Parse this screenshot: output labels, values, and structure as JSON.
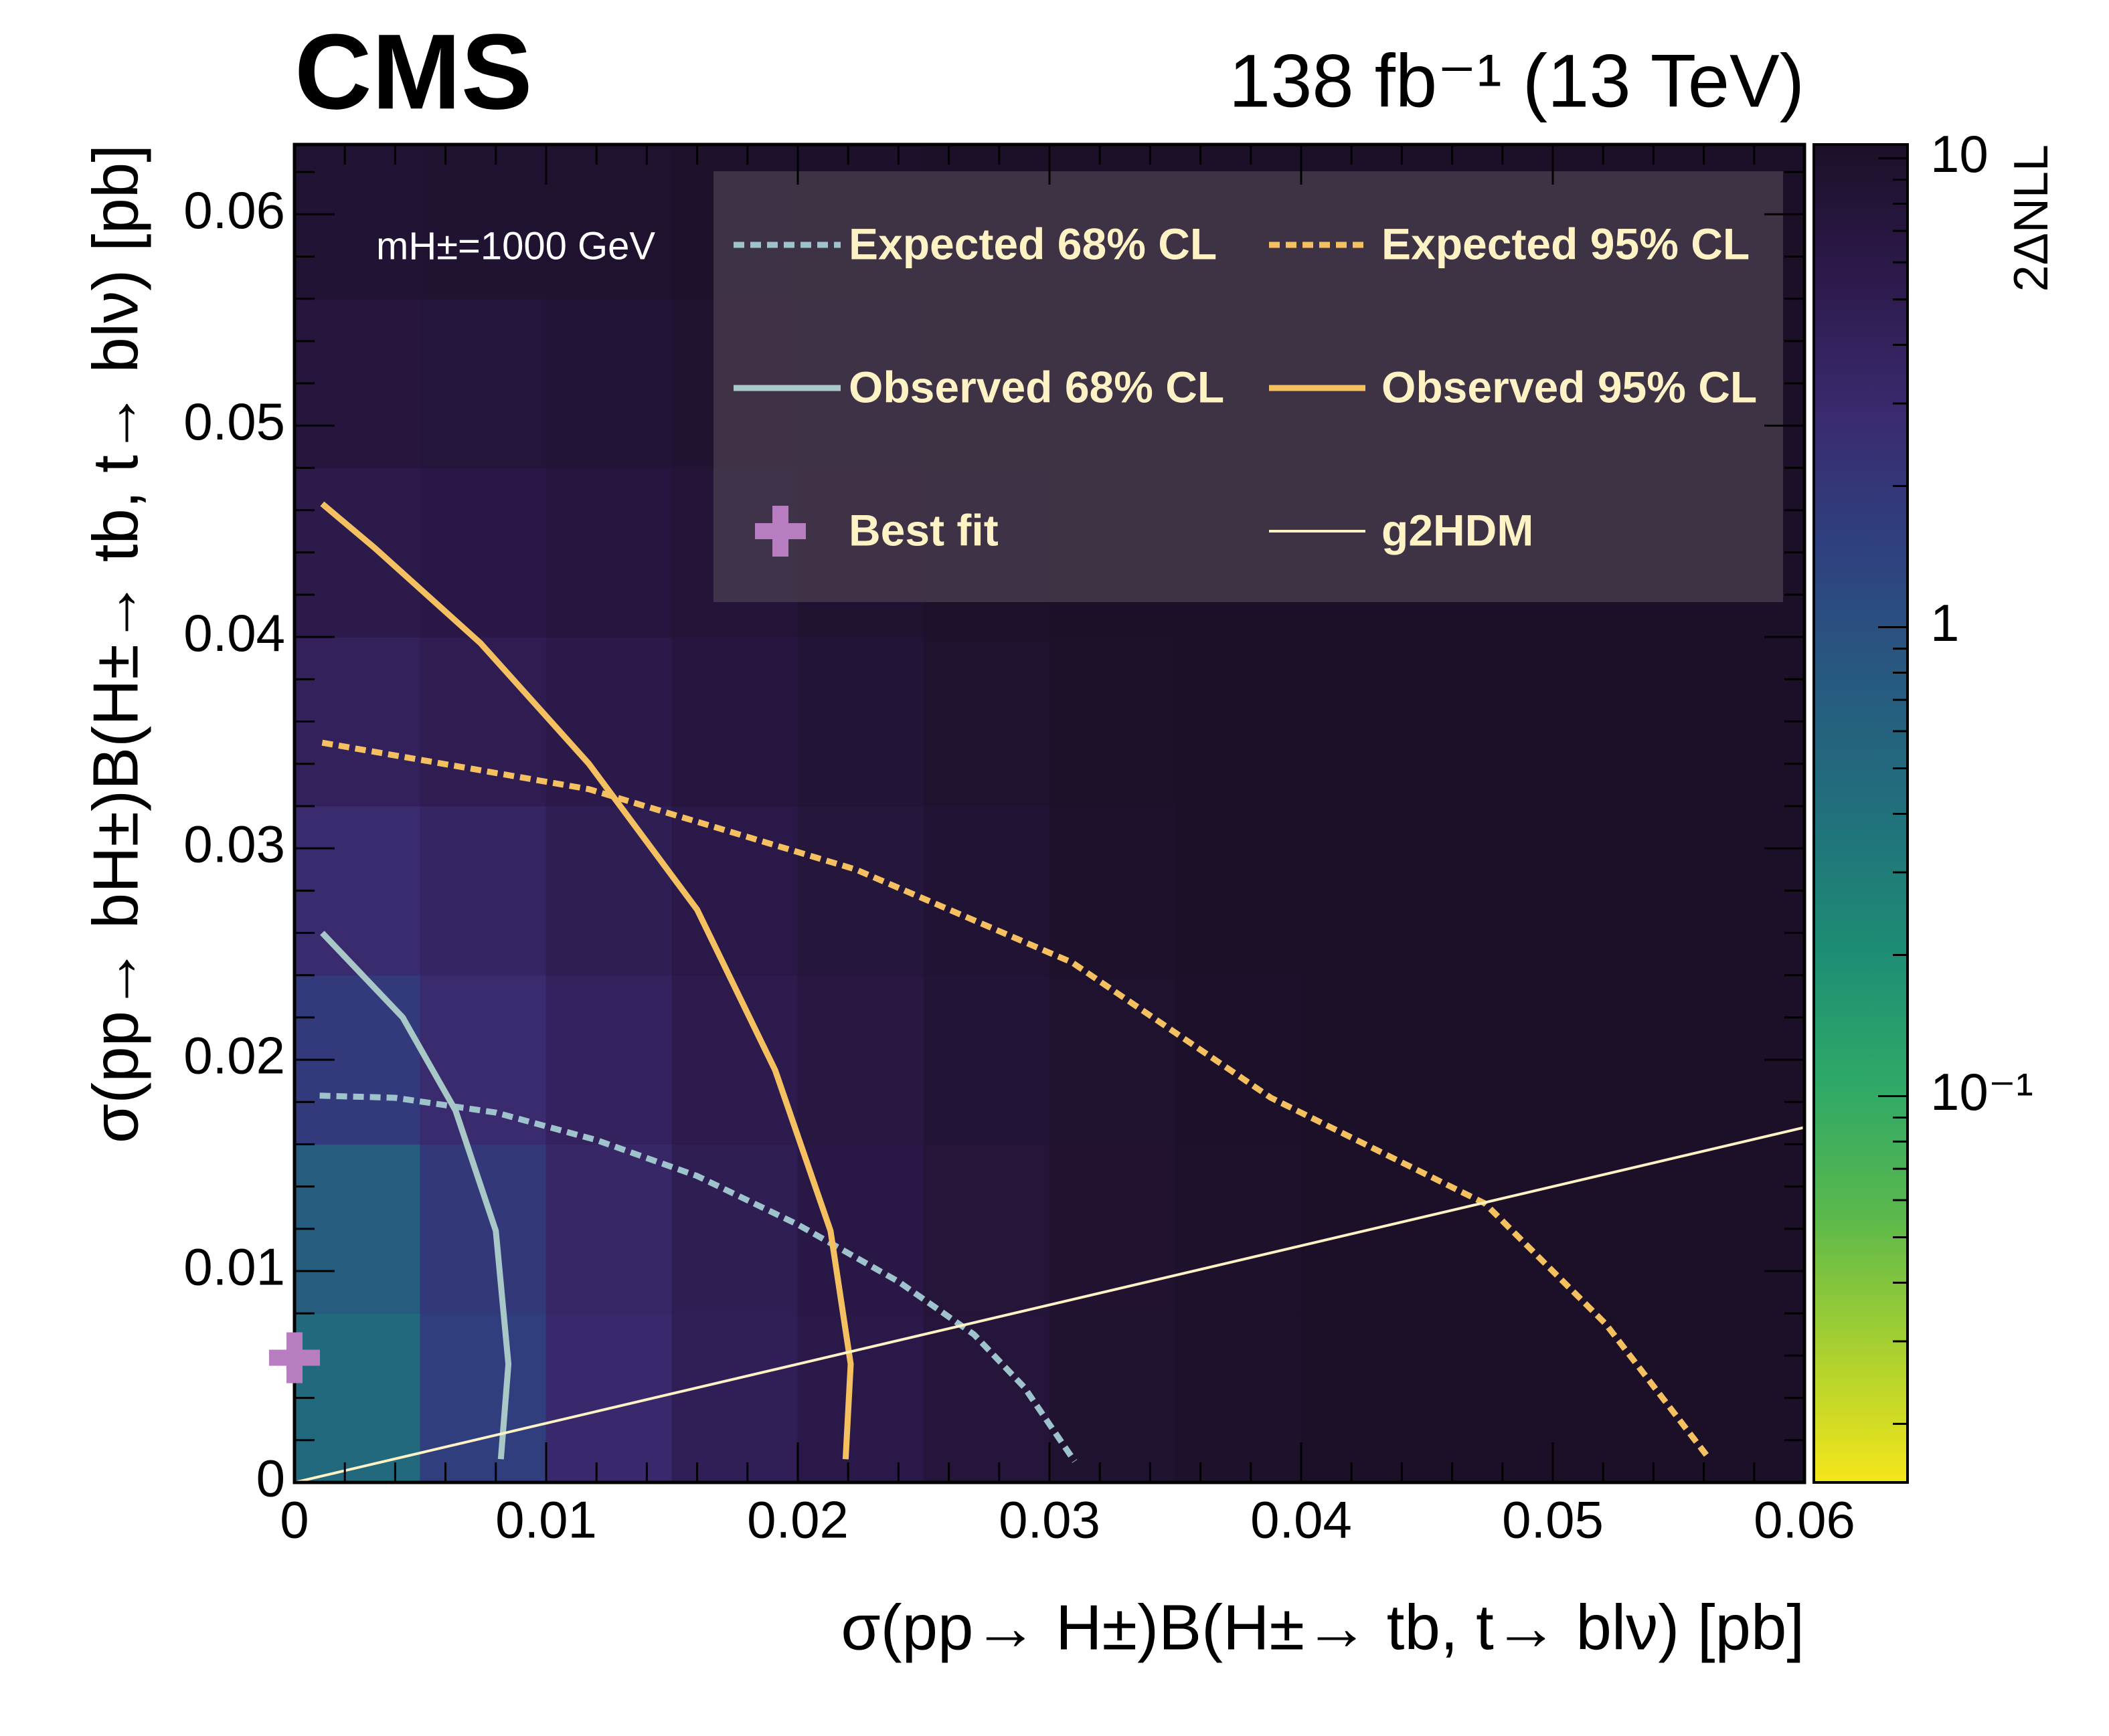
{
  "chart_data": {
    "type": "contour",
    "title": "CMS",
    "subtitle": "138 fb⁻¹ (13 TeV)",
    "annotation": "mH±=1000 GeV",
    "x_label": "σ(pp→ H±)B(H±→ tb, t→ blν) [pb]",
    "y_label": "σ(pp→ bH±)B(H±→ tb, t→ blν) [pb]",
    "z_label": "2ΔNLL",
    "xlim": [
      0,
      0.06
    ],
    "ylim": [
      0,
      0.0633
    ],
    "xticks": [
      0,
      0.01,
      0.02,
      0.03,
      0.04,
      0.05,
      0.06
    ],
    "yticks": [
      0,
      0.01,
      0.02,
      0.03,
      0.04,
      0.05,
      0.06
    ],
    "xminorticks": [
      0.002,
      0.004,
      0.006,
      0.008,
      0.012,
      0.014,
      0.016,
      0.018,
      0.022,
      0.024,
      0.026,
      0.028,
      0.032,
      0.034,
      0.036,
      0.038,
      0.042,
      0.044,
      0.046,
      0.048,
      0.052,
      0.054,
      0.056,
      0.058
    ],
    "yminorticks": [
      0.002,
      0.004,
      0.006,
      0.008,
      0.012,
      0.014,
      0.016,
      0.018,
      0.022,
      0.024,
      0.026,
      0.028,
      0.032,
      0.034,
      0.036,
      0.038,
      0.042,
      0.044,
      0.046,
      0.048,
      0.052,
      0.054,
      0.056,
      0.058,
      0.062
    ],
    "zlim": [
      0.015,
      10.7
    ],
    "zscale": "log",
    "zticks": [
      10,
      1,
      {
        "value": 0.1,
        "label": "10⁻¹"
      }
    ],
    "zminorticks": [
      0.02,
      0.03,
      0.04,
      0.05,
      0.06,
      0.07,
      0.08,
      0.09,
      0.2,
      0.3,
      0.4,
      0.5,
      0.6,
      0.7,
      0.8,
      0.9,
      2,
      3,
      4,
      5,
      6,
      7,
      8,
      9
    ],
    "colorscale": [
      "#f5e61a",
      "#a8d030",
      "#5ab84c",
      "#2ea868",
      "#1e8c74",
      "#21707c",
      "#275a80",
      "#2f4080",
      "#3a2a6e",
      "#2c1a4c",
      "#1c1028"
    ],
    "heatmap": {
      "xbins": [
        0,
        0.005,
        0.01,
        0.015,
        0.02,
        0.025,
        0.03,
        0.035,
        0.04,
        0.045,
        0.05,
        0.055,
        0.06
      ],
      "ybins": [
        0,
        0.008,
        0.016,
        0.024,
        0.032,
        0.04,
        0.048,
        0.056,
        0.064
      ],
      "z": [
        [
          0.5,
          1.6,
          3.0,
          4.5,
          6.0,
          7.5,
          9.0,
          10.0,
          10.5,
          10.7,
          10.7,
          10.7
        ],
        [
          0.7,
          1.9,
          3.3,
          4.8,
          6.3,
          7.8,
          9.2,
          10.2,
          10.6,
          10.7,
          10.7,
          10.7
        ],
        [
          1.8,
          2.8,
          4.0,
          5.4,
          6.8,
          8.2,
          9.5,
          10.4,
          10.7,
          10.7,
          10.7,
          10.7
        ],
        [
          2.8,
          3.6,
          4.8,
          6.0,
          7.4,
          8.7,
          9.9,
          10.6,
          10.7,
          10.7,
          10.7,
          10.7
        ],
        [
          4.2,
          4.9,
          5.8,
          7.0,
          8.2,
          9.4,
          10.3,
          10.7,
          10.7,
          10.7,
          10.7,
          10.7
        ],
        [
          5.6,
          6.2,
          7.0,
          8.0,
          9.1,
          10.0,
          10.6,
          10.7,
          10.7,
          10.7,
          10.7,
          10.7
        ],
        [
          7.2,
          7.7,
          8.3,
          9.0,
          9.9,
          10.5,
          10.7,
          10.7,
          10.7,
          10.7,
          10.7,
          10.7
        ],
        [
          8.8,
          9.0,
          9.4,
          9.9,
          10.4,
          10.7,
          10.7,
          10.7,
          10.7,
          10.7,
          10.7,
          10.7
        ]
      ]
    },
    "series": [
      {
        "name": "Expected 68% CL",
        "color": "#9fc3cc",
        "style": "dashed",
        "x": [
          0.001,
          0.004,
          0.008,
          0.012,
          0.016,
          0.02,
          0.024,
          0.027,
          0.029,
          0.031
        ],
        "y": [
          0.0183,
          0.0182,
          0.0175,
          0.0162,
          0.0145,
          0.0122,
          0.0095,
          0.007,
          0.0045,
          0.001
        ]
      },
      {
        "name": "Expected 95% CL",
        "color": "#f5c060",
        "style": "dashed",
        "x": [
          0.0011,
          0.0117,
          0.0223,
          0.0309,
          0.0388,
          0.0473,
          0.0521,
          0.0561
        ],
        "y": [
          0.035,
          0.0328,
          0.029,
          0.0246,
          0.0182,
          0.0132,
          0.0075,
          0.0013
        ]
      },
      {
        "name": "Observed 68% CL",
        "color": "#a8c8c8",
        "style": "solid",
        "x": [
          0.0011,
          0.0043,
          0.0064,
          0.008,
          0.0085,
          0.0082
        ],
        "y": [
          0.026,
          0.022,
          0.0176,
          0.0119,
          0.0056,
          0.0011
        ]
      },
      {
        "name": "Observed 95% CL",
        "color": "#f5c060",
        "style": "solid",
        "x": [
          0.0011,
          0.0032,
          0.0074,
          0.0117,
          0.016,
          0.0191,
          0.0213,
          0.0221,
          0.0219
        ],
        "y": [
          0.0463,
          0.0442,
          0.0397,
          0.034,
          0.0271,
          0.0195,
          0.0119,
          0.0056,
          0.0011
        ]
      },
      {
        "name": "Best fit",
        "color": "#b87cc0",
        "style": "marker",
        "x": [
          0
        ],
        "y": [
          0.0059
        ]
      },
      {
        "name": "g2HDM",
        "color": "#fff2c4",
        "style": "thin",
        "x": [
          0,
          0.06
        ],
        "y": [
          0,
          0.0168
        ]
      }
    ]
  }
}
